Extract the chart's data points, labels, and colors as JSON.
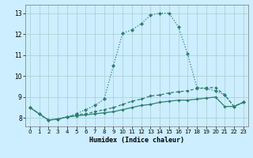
{
  "xlabel": "Humidex (Indice chaleur)",
  "background_color": "#cceeff",
  "grid_color": "#aacccc",
  "line_color": "#2e7d6e",
  "xlim": [
    -0.5,
    23.5
  ],
  "ylim": [
    7.6,
    13.4
  ],
  "xticks": [
    0,
    1,
    2,
    3,
    4,
    5,
    6,
    7,
    8,
    9,
    10,
    11,
    12,
    13,
    14,
    15,
    16,
    17,
    18,
    19,
    20,
    21,
    22,
    23
  ],
  "yticks": [
    8,
    9,
    10,
    11,
    12,
    13
  ],
  "line1_x": [
    0,
    1,
    2,
    3,
    4,
    5,
    6,
    7,
    8,
    9,
    10,
    11,
    12,
    13,
    14,
    15,
    16,
    17,
    18,
    19,
    20,
    21,
    22,
    23
  ],
  "line1_y": [
    8.5,
    8.2,
    7.9,
    7.95,
    8.05,
    8.1,
    8.15,
    8.2,
    8.25,
    8.3,
    8.4,
    8.5,
    8.6,
    8.65,
    8.75,
    8.8,
    8.85,
    8.85,
    8.9,
    8.95,
    9.0,
    8.55,
    8.55,
    8.75
  ],
  "line2_x": [
    0,
    1,
    2,
    3,
    4,
    5,
    6,
    7,
    8,
    9,
    10,
    11,
    12,
    13,
    14,
    15,
    16,
    17,
    18,
    19,
    20,
    21,
    22,
    23
  ],
  "line2_y": [
    8.5,
    8.2,
    7.9,
    7.95,
    8.05,
    8.15,
    8.2,
    8.3,
    8.4,
    8.5,
    8.65,
    8.8,
    8.9,
    9.05,
    9.1,
    9.2,
    9.25,
    9.3,
    9.4,
    9.45,
    9.45,
    9.1,
    8.55,
    8.75
  ],
  "line3_x": [
    0,
    1,
    2,
    3,
    4,
    5,
    6,
    7,
    8,
    9,
    10,
    11,
    12,
    13,
    14,
    15,
    16,
    17,
    18,
    19,
    20,
    21,
    22,
    23
  ],
  "line3_y": [
    8.5,
    8.2,
    7.9,
    7.95,
    8.05,
    8.2,
    8.4,
    8.6,
    8.9,
    10.5,
    12.05,
    12.2,
    12.5,
    12.9,
    13.0,
    13.0,
    12.35,
    11.05,
    9.45,
    9.4,
    9.3,
    9.1,
    8.55,
    8.75
  ]
}
